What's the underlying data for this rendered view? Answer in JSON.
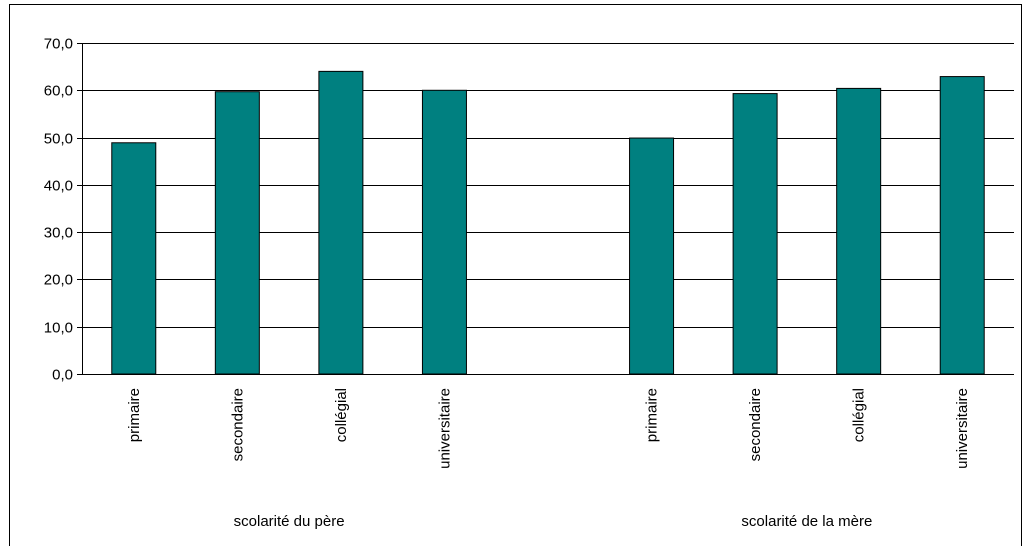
{
  "chart_data": {
    "type": "bar",
    "title": "",
    "ylabel": "",
    "xlabel": "",
    "ylim": [
      0,
      70
    ],
    "y_ticks": [
      "0,0",
      "10,0",
      "20,0",
      "30,0",
      "40,0",
      "50,0",
      "60,0",
      "70,0"
    ],
    "y_tick_values": [
      0,
      10,
      20,
      30,
      40,
      50,
      60,
      70
    ],
    "grid": true,
    "bar_color": "#008080",
    "groups": [
      {
        "name": "scolarité du père",
        "categories": [
          "primaire",
          "secondaire",
          "collégial",
          "universitaire"
        ],
        "values": [
          48.9,
          59.7,
          64.0,
          60.0
        ]
      },
      {
        "name": "scolarité de la mère",
        "categories": [
          "primaire",
          "secondaire",
          "collégial",
          "universitaire"
        ],
        "values": [
          49.9,
          59.3,
          60.4,
          62.9
        ]
      }
    ]
  }
}
